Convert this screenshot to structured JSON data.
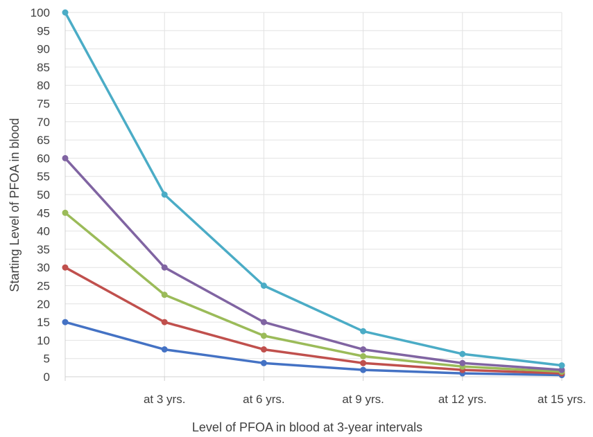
{
  "chart_data": {
    "type": "line",
    "title": "",
    "xlabel": "Level of PFOA in blood at 3-year intervals",
    "ylabel": "Starting Level of PFOA in blood",
    "ylim": [
      0,
      100
    ],
    "yticks": [
      0,
      5,
      10,
      15,
      20,
      25,
      30,
      35,
      40,
      45,
      50,
      55,
      60,
      65,
      70,
      75,
      80,
      85,
      90,
      95,
      100
    ],
    "categories": [
      "",
      "at 3 yrs.",
      "at 6 yrs.",
      "at 9 yrs.",
      "at 12 yrs.",
      "at 15 yrs."
    ],
    "grid": true,
    "legend": "none",
    "series": [
      {
        "color": "#4472c4",
        "values": [
          15,
          7.5,
          3.75,
          1.875,
          0.94,
          0.47
        ]
      },
      {
        "color": "#c0504d",
        "values": [
          30,
          15,
          7.5,
          3.75,
          1.875,
          0.94
        ]
      },
      {
        "color": "#9bbb59",
        "values": [
          45,
          22.5,
          11.25,
          5.625,
          2.8,
          1.4
        ]
      },
      {
        "color": "#8064a2",
        "values": [
          60,
          30,
          15,
          7.5,
          3.75,
          1.875
        ]
      },
      {
        "color": "#4bacc6",
        "values": [
          100,
          50,
          25,
          12.5,
          6.25,
          3.125
        ]
      }
    ]
  }
}
